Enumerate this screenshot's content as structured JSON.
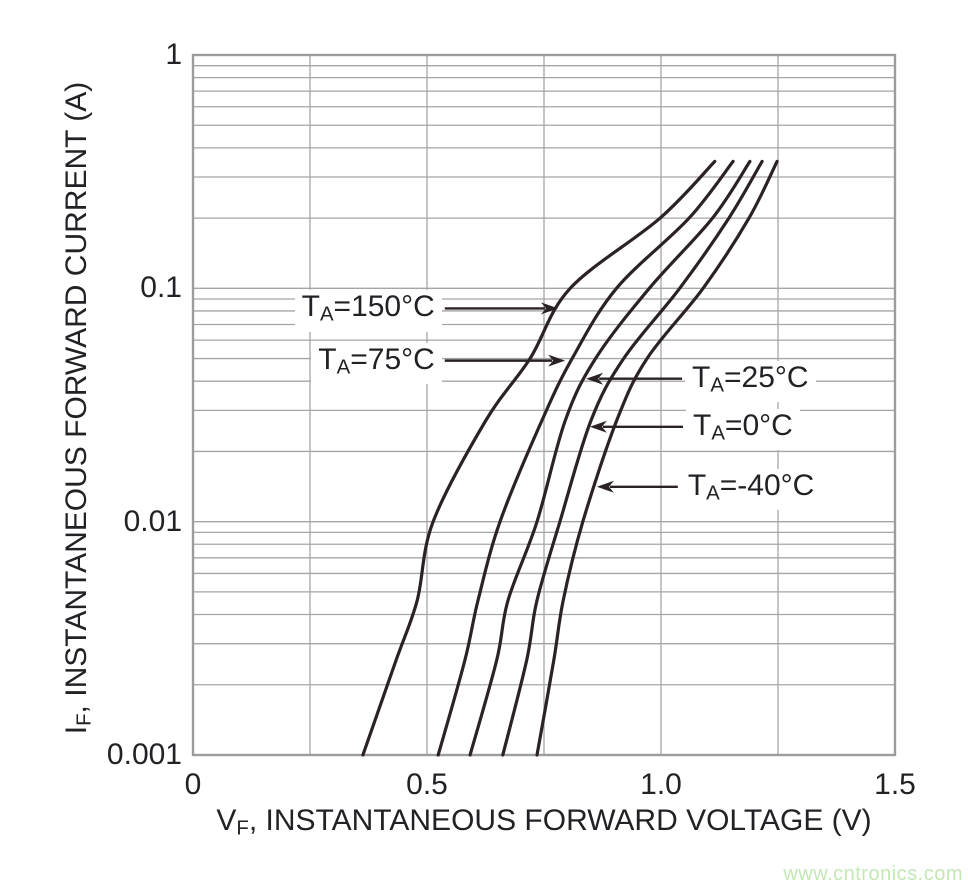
{
  "watermark": "www.cntronics.com",
  "styles": {
    "curve_color": "#2b2226",
    "grid_color": "#a7a4a4",
    "border_color": "#9c9c9c",
    "text_color": "#222226",
    "watermark_color": "#c3e8b4",
    "background": "#ffffff"
  },
  "chart_data": {
    "type": "line",
    "title": "",
    "grid": true,
    "legend_position": "inline-arrow-annotations",
    "x_axis": {
      "label": {
        "main": "V",
        "sub": "F",
        "rest": ", INSTANTANEOUS FORWARD VOLTAGE (V)"
      },
      "min": 0,
      "max": 1.5,
      "minor_step": 0.25,
      "ticks": [
        {
          "v": 0,
          "label": "0"
        },
        {
          "v": 0.5,
          "label": "0.5"
        },
        {
          "v": 1.0,
          "label": "1.0"
        },
        {
          "v": 1.5,
          "label": "1.5"
        }
      ]
    },
    "y_axis": {
      "label": {
        "main": "I",
        "sub": "F",
        "rest": ", INSTANTANEOUS FORWARD CURRENT (A)"
      },
      "scale": "log",
      "min": 0.001,
      "max": 1,
      "minor_mantissas": [
        2,
        3,
        4,
        5,
        6,
        7,
        8,
        9
      ],
      "ticks": [
        {
          "i": 1,
          "label": "1"
        },
        {
          "i": 0.1,
          "label": "0.1"
        },
        {
          "i": 0.01,
          "label": "0.01"
        },
        {
          "i": 0.001,
          "label": "0.001"
        }
      ]
    },
    "series": [
      {
        "id": "ta-150",
        "temp": "150°C",
        "name": "TA=150°C",
        "points": [
          [
            0.363,
            0.001
          ],
          [
            0.434,
            0.00255
          ],
          [
            0.479,
            0.0046
          ],
          [
            0.513,
            0.01
          ],
          [
            0.625,
            0.027
          ],
          [
            0.72,
            0.05
          ],
          [
            0.806,
            0.1
          ],
          [
            0.998,
            0.2
          ],
          [
            1.115,
            0.35
          ]
        ]
      },
      {
        "id": "ta-75",
        "temp": "75°C",
        "name": "TA=75°C",
        "points": [
          [
            0.524,
            0.001
          ],
          [
            0.581,
            0.00255
          ],
          [
            0.609,
            0.0046
          ],
          [
            0.656,
            0.01
          ],
          [
            0.745,
            0.027
          ],
          [
            0.81,
            0.05
          ],
          [
            0.905,
            0.1
          ],
          [
            1.06,
            0.2
          ],
          [
            1.154,
            0.35
          ]
        ]
      },
      {
        "id": "ta-25",
        "temp": "25°C",
        "name": "TA=25°C",
        "points": [
          [
            0.592,
            0.001
          ],
          [
            0.649,
            0.00255
          ],
          [
            0.673,
            0.0046
          ],
          [
            0.735,
            0.01
          ],
          [
            0.795,
            0.027
          ],
          [
            0.86,
            0.05
          ],
          [
            0.975,
            0.1
          ],
          [
            1.11,
            0.2
          ],
          [
            1.19,
            0.35
          ]
        ]
      },
      {
        "id": "ta-0",
        "temp": "0°C",
        "name": "TA=0°C",
        "points": [
          [
            0.662,
            0.001
          ],
          [
            0.713,
            0.00255
          ],
          [
            0.735,
            0.0046
          ],
          [
            0.784,
            0.01
          ],
          [
            0.85,
            0.027
          ],
          [
            0.92,
            0.05
          ],
          [
            1.04,
            0.1
          ],
          [
            1.145,
            0.2
          ],
          [
            1.216,
            0.35
          ]
        ]
      },
      {
        "id": "ta--40",
        "temp": "-40°C",
        "name": "TA=-40°C",
        "points": [
          [
            0.735,
            0.001
          ],
          [
            0.771,
            0.00255
          ],
          [
            0.791,
            0.0046
          ],
          [
            0.833,
            0.01
          ],
          [
            0.905,
            0.027
          ],
          [
            0.97,
            0.05
          ],
          [
            1.09,
            0.1
          ],
          [
            1.188,
            0.2
          ],
          [
            1.248,
            0.35
          ]
        ]
      }
    ],
    "annotations": [
      {
        "id": "ta-150",
        "t": "T",
        "sub": "A",
        "rest": "=150°C",
        "side": "left",
        "i": 0.082,
        "v_tip": 0.78,
        "v_tail": 0.538
      },
      {
        "id": "ta-75",
        "t": "T",
        "sub": "A",
        "rest": "=75°C",
        "side": "left",
        "i": 0.049,
        "v_tip": 0.795,
        "v_tail": 0.538
      },
      {
        "id": "ta-25",
        "t": "T",
        "sub": "A",
        "rest": "=25°C",
        "side": "right",
        "i": 0.041,
        "v_tip": 0.84,
        "v_tail": 1.045
      },
      {
        "id": "ta-0",
        "t": "T",
        "sub": "A",
        "rest": "=0°C",
        "side": "right",
        "i": 0.0255,
        "v_tip": 0.848,
        "v_tail": 1.047
      },
      {
        "id": "ta--40",
        "t": "T",
        "sub": "A",
        "rest": "=-40°C",
        "side": "right",
        "i": 0.0141,
        "v_tip": 0.863,
        "v_tail": 1.036
      }
    ]
  }
}
